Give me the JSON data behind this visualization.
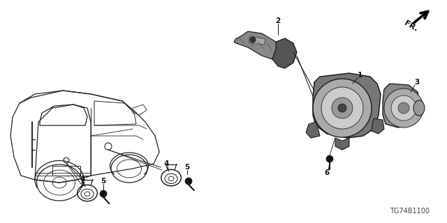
{
  "bg_color": "#ffffff",
  "fig_width": 6.4,
  "fig_height": 3.2,
  "dpi": 100,
  "diagram_code": "TG74B1100",
  "line_color": "#333333",
  "label_color": "#111111"
}
